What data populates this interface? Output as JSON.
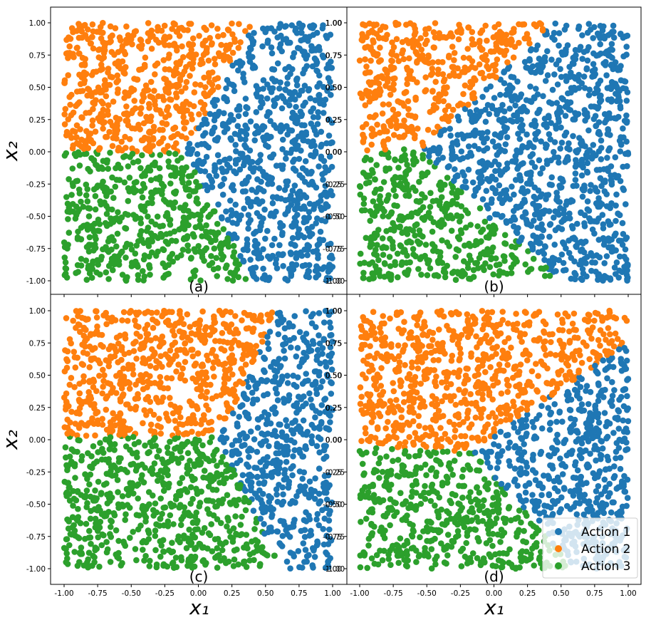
{
  "figure": {
    "ylabel_top": "x₂",
    "ylabel_bottom": "x₂",
    "xlabel_left": "x₁",
    "xlabel_right": "x₁"
  },
  "chart_data": [
    {
      "type": "scatter",
      "panel_label": "(a)",
      "xlim": [
        -1,
        1
      ],
      "ylim": [
        -1,
        1
      ],
      "xticks": [
        "-1.00",
        "-0.75",
        "-0.50",
        "-0.25",
        "0.00",
        "0.25",
        "0.50",
        "0.75",
        "1.00"
      ],
      "yticks": [
        "-1.00",
        "-0.75",
        "-0.50",
        "-0.25",
        "0.00",
        "0.25",
        "0.50",
        "0.75",
        "1.00"
      ],
      "tick_labels_shown": {
        "x": false,
        "y": "left-and-right"
      },
      "regions": [
        {
          "name": "Action 2",
          "rule": "y > 0 and x < 0.4 - 0.4*(1 - y)... boundary from (-0.1,0.0) to (0.42,1.0)",
          "boundary_x": [
            [
              0.0,
              -0.1
            ],
            [
              0.5,
              0.22
            ],
            [
              1.0,
              0.42
            ]
          ]
        },
        {
          "name": "Action 3",
          "rule": "y < 0 and x below boundary from (-0.1,0.0) to (0.4,-1.0)",
          "boundary_x": [
            [
              0.0,
              -0.1
            ],
            [
              -0.35,
              0.2
            ],
            [
              -1.0,
              0.4
            ]
          ]
        },
        {
          "name": "Action 1",
          "rule": "remaining region (right side)"
        }
      ],
      "legend": false
    },
    {
      "type": "scatter",
      "panel_label": "(b)",
      "xlim": [
        -1,
        1
      ],
      "ylim": [
        -1,
        1
      ],
      "xticks": [
        "-1.00",
        "-0.75",
        "-0.50",
        "-0.25",
        "0.00",
        "0.25",
        "0.50",
        "0.75",
        "1.00"
      ],
      "yticks": [
        "-1.00",
        "-0.75",
        "-0.50",
        "-0.25",
        "0.00",
        "0.25",
        "0.50",
        "0.75",
        "1.00"
      ],
      "tick_labels_shown": {
        "x": false,
        "y": "left"
      },
      "regions": [
        {
          "name": "Action 2",
          "boundary": "upper-left; diagonal from (-0.55,0.0) to (0.45,1.0)"
        },
        {
          "name": "Action 3",
          "boundary": "lower-left; diagonal from (-0.55,0.0) to (0.45,-1.0)"
        },
        {
          "name": "Action 1",
          "boundary": "right wedge"
        }
      ],
      "legend": false
    },
    {
      "type": "scatter",
      "panel_label": "(c)",
      "xlim": [
        -1,
        1
      ],
      "ylim": [
        -1,
        1
      ],
      "xticks": [
        "-1.00",
        "-0.75",
        "-0.50",
        "-0.25",
        "0.00",
        "0.25",
        "0.50",
        "0.75",
        "1.00"
      ],
      "yticks": [
        "-1.00",
        "-0.75",
        "-0.50",
        "-0.25",
        "0.00",
        "0.25",
        "0.50",
        "0.75",
        "1.00"
      ],
      "tick_labels_shown": {
        "x": true,
        "y": "left-and-right"
      },
      "regions": [
        {
          "name": "Action 2",
          "boundary": "upper-left; from (0.15,0.0) to (0.58,1.0)"
        },
        {
          "name": "Action 3",
          "boundary": "lower-left; from (0.15,0.0) to (0.62,-1.0)"
        },
        {
          "name": "Action 1",
          "boundary": "right strip"
        }
      ],
      "legend": false
    },
    {
      "type": "scatter",
      "panel_label": "(d)",
      "xlim": [
        -1,
        1
      ],
      "ylim": [
        -1,
        1
      ],
      "xticks": [
        "-1.00",
        "-0.75",
        "-0.50",
        "-0.25",
        "0.00",
        "0.25",
        "0.50",
        "0.75",
        "1.00"
      ],
      "yticks": [
        "-1.00",
        "-0.75",
        "-0.50",
        "-0.25",
        "0.00",
        "0.25",
        "0.50",
        "0.75",
        "1.00"
      ],
      "tick_labels_shown": {
        "x": true,
        "y": "left"
      },
      "regions": [
        {
          "name": "Action 2",
          "boundary": "above diagonal from (-1.0,-0.05)…(-0.2,-0.1) to (1.0,0.75)"
        },
        {
          "name": "Action 3",
          "boundary": "below, left of diagonal from (-0.2,-0.05) to (0.6,-1.0)"
        },
        {
          "name": "Action 1",
          "boundary": "right-lower wedge"
        }
      ],
      "legend": true,
      "legend_position": "lower-right",
      "legend_entries": [
        {
          "label": "Action 1",
          "color": "#1f77b4"
        },
        {
          "label": "Action 2",
          "color": "#ff7f0e"
        },
        {
          "label": "Action 3",
          "color": "#2ca02c"
        }
      ]
    }
  ],
  "colors": {
    "action1": "#1f77b4",
    "action2": "#ff7f0e",
    "action3": "#2ca02c"
  }
}
